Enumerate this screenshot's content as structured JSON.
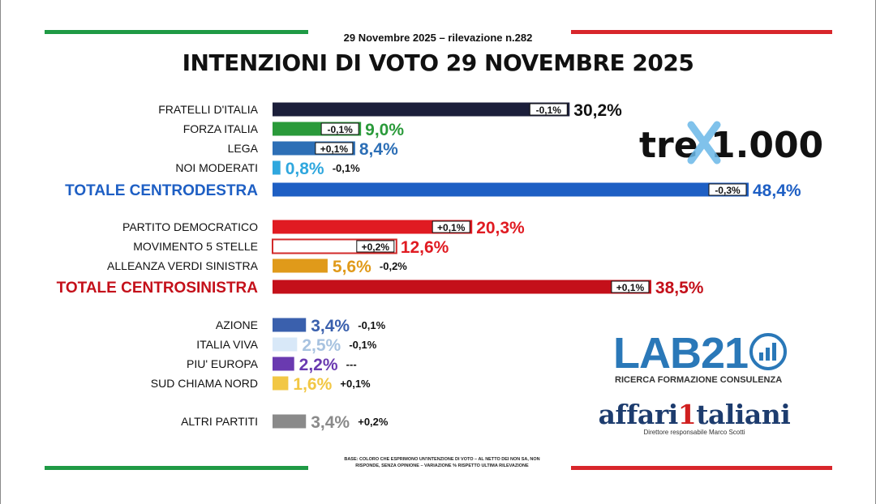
{
  "header": {
    "subtitle": "29 Novembre 2025 – rilevazione n.282",
    "title": "INTENZIONI DI VOTO 29 NOVEMBRE 2025"
  },
  "colors": {
    "flag_green": "#1f9a45",
    "flag_red": "#d8262b",
    "centrodestra_total": "#1e5fc4",
    "centrosinistra_total": "#c4101a"
  },
  "chart_data": {
    "type": "bar",
    "orientation": "horizontal",
    "unit": "%",
    "categories": [
      "FRATELLI D'ITALIA",
      "FORZA ITALIA",
      "LEGA",
      "NOI MODERATI",
      "TOTALE CENTRODESTRA",
      "PARTITO DEMOCRATICO",
      "MOVIMENTO 5 STELLE",
      "ALLEANZA VERDI SINISTRA",
      "TOTALE CENTROSINISTRA",
      "AZIONE",
      "ITALIA VIVA",
      "PIU' EUROPA",
      "SUD CHIAMA NORD",
      "ALTRI PARTITI"
    ],
    "values": [
      30.2,
      9.0,
      8.4,
      0.8,
      48.4,
      20.3,
      12.6,
      5.6,
      38.5,
      3.4,
      2.5,
      2.2,
      1.6,
      3.4
    ],
    "value_labels": [
      "30,2%",
      "9,0%",
      "8,4%",
      "0,8%",
      "48,4%",
      "20,3%",
      "12,6%",
      "5,6%",
      "38,5%",
      "3,4%",
      "2,5%",
      "2,2%",
      "1,6%",
      "3,4%"
    ],
    "variations": [
      "-0,1%",
      "-0,1%",
      "+0,1%",
      "-0,1%",
      "-0,3%",
      "+0,1%",
      "+0,2%",
      "-0,2%",
      "+0,1%",
      "-0,1%",
      "-0,1%",
      "---",
      "+0,1%",
      "+0,2%"
    ],
    "bar_colors": [
      "#1c1f3b",
      "#2a9a3a",
      "#2d6fb6",
      "#2fa7de",
      "#1e5fc4",
      "#e01b22",
      "#ffffff",
      "#e09a1a",
      "#c4101a",
      "#3a60ad",
      "#d8e8f8",
      "#6a3ab0",
      "#f2c744",
      "#8a8a8a"
    ],
    "bar_outline": [
      null,
      null,
      null,
      null,
      null,
      null,
      "#d22a2a",
      null,
      null,
      null,
      null,
      null,
      null,
      null
    ],
    "label_colors": [
      "#111111",
      "#2a9a3a",
      "#2d6fb6",
      "#2fa7de",
      "#1e5fc4",
      "#e01b22",
      "#e01b22",
      "#e09a1a",
      "#c4101a",
      "#3a60ad",
      "#a8c3e0",
      "#6a3ab0",
      "#f2c744",
      "#8a8a8a"
    ],
    "category_emphasis": [
      false,
      false,
      false,
      false,
      true,
      false,
      false,
      false,
      true,
      false,
      false,
      false,
      false,
      false
    ],
    "x_range": [
      0,
      48.4
    ],
    "grid": false,
    "legend": "none"
  },
  "logos": {
    "tre_left": "tre",
    "tre_right": "1.000",
    "lab": "LAB21",
    "lab_sub": "RICERCA FORMAZIONE CONSULENZA",
    "affari_pre": "affari",
    "affari_one": "1",
    "affari_post": "taliani",
    "affari_sub": "Direttore responsabile Marco Scotti"
  },
  "footnote": {
    "line1": "BASE: COLORO CHE ESPRIMONO UN'INTENZIONE DI VOTO – AL NETTO DEI NON SA, NON",
    "line2": "RISPONDE, SENZA OPINIONE – VARIAZIONE % RISPETTO ULTIMA RILEVAZIONE"
  }
}
